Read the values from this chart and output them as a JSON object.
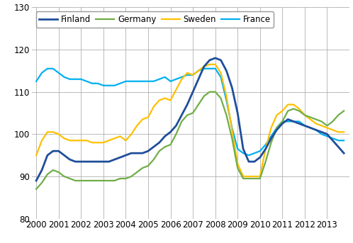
{
  "ylim": [
    80,
    130
  ],
  "yticks": [
    80,
    90,
    100,
    110,
    120,
    130
  ],
  "xtick_labels": [
    "2000",
    "2001",
    "2002",
    "2003",
    "2004",
    "2005",
    "2006",
    "2007",
    "2008",
    "2009",
    "2010",
    "2011",
    "2012",
    "2013"
  ],
  "legend_labels": [
    "Finland",
    "Germany",
    "Sweden",
    "France"
  ],
  "colors": {
    "Finland": "#1f4e9a",
    "Germany": "#70ad47",
    "Sweden": "#ffc000",
    "France": "#00b0f0"
  },
  "linewidths": {
    "Finland": 2.0,
    "Germany": 1.6,
    "Sweden": 1.6,
    "France": 1.6
  },
  "Finland_x": [
    2000.0,
    2000.25,
    2000.5,
    2000.75,
    2001.0,
    2001.25,
    2001.5,
    2001.75,
    2002.0,
    2002.25,
    2002.5,
    2002.75,
    2003.0,
    2003.25,
    2003.5,
    2003.75,
    2004.0,
    2004.25,
    2004.5,
    2004.75,
    2005.0,
    2005.25,
    2005.5,
    2005.75,
    2006.0,
    2006.25,
    2006.5,
    2006.75,
    2007.0,
    2007.25,
    2007.5,
    2007.75,
    2008.0,
    2008.25,
    2008.5,
    2008.75,
    2009.0,
    2009.25,
    2009.5,
    2009.75,
    2010.0,
    2010.25,
    2010.5,
    2010.75,
    2011.0,
    2011.25,
    2011.5,
    2011.75,
    2012.0,
    2012.25,
    2012.5,
    2012.75,
    2013.0,
    2013.25,
    2013.5,
    2013.75
  ],
  "Finland_y": [
    89.0,
    91.5,
    95.0,
    96.0,
    96.0,
    95.0,
    94.0,
    93.5,
    93.5,
    93.5,
    93.5,
    93.5,
    93.5,
    93.5,
    94.0,
    94.5,
    95.0,
    95.5,
    95.5,
    95.5,
    96.0,
    97.0,
    98.0,
    99.5,
    100.5,
    102.0,
    104.5,
    107.0,
    110.0,
    113.0,
    116.0,
    117.5,
    118.0,
    117.5,
    115.0,
    111.0,
    105.0,
    96.5,
    93.5,
    93.5,
    94.5,
    96.5,
    99.0,
    101.0,
    102.5,
    103.5,
    103.0,
    102.5,
    102.0,
    101.5,
    101.0,
    100.5,
    100.0,
    98.5,
    97.0,
    95.5
  ],
  "Germany_x": [
    2000.0,
    2000.25,
    2000.5,
    2000.75,
    2001.0,
    2001.25,
    2001.5,
    2001.75,
    2002.0,
    2002.25,
    2002.5,
    2002.75,
    2003.0,
    2003.25,
    2003.5,
    2003.75,
    2004.0,
    2004.25,
    2004.5,
    2004.75,
    2005.0,
    2005.25,
    2005.5,
    2005.75,
    2006.0,
    2006.25,
    2006.5,
    2006.75,
    2007.0,
    2007.25,
    2007.5,
    2007.75,
    2008.0,
    2008.25,
    2008.5,
    2008.75,
    2009.0,
    2009.25,
    2009.5,
    2009.75,
    2010.0,
    2010.25,
    2010.5,
    2010.75,
    2011.0,
    2011.25,
    2011.5,
    2011.75,
    2012.0,
    2012.25,
    2012.5,
    2012.75,
    2013.0,
    2013.25,
    2013.5,
    2013.75
  ],
  "Germany_y": [
    87.0,
    88.5,
    90.5,
    91.5,
    91.0,
    90.0,
    89.5,
    89.0,
    89.0,
    89.0,
    89.0,
    89.0,
    89.0,
    89.0,
    89.0,
    89.5,
    89.5,
    90.0,
    91.0,
    92.0,
    92.5,
    94.0,
    96.0,
    97.0,
    97.5,
    100.0,
    103.0,
    104.5,
    105.0,
    107.0,
    109.0,
    110.0,
    110.0,
    108.5,
    104.5,
    99.0,
    92.0,
    89.5,
    89.5,
    89.5,
    89.5,
    93.5,
    98.0,
    101.5,
    103.0,
    105.5,
    106.0,
    105.5,
    104.5,
    104.0,
    103.5,
    103.0,
    102.0,
    103.0,
    104.5,
    105.5
  ],
  "Sweden_x": [
    2000.0,
    2000.25,
    2000.5,
    2000.75,
    2001.0,
    2001.25,
    2001.5,
    2001.75,
    2002.0,
    2002.25,
    2002.5,
    2002.75,
    2003.0,
    2003.25,
    2003.5,
    2003.75,
    2004.0,
    2004.25,
    2004.5,
    2004.75,
    2005.0,
    2005.25,
    2005.5,
    2005.75,
    2006.0,
    2006.25,
    2006.5,
    2006.75,
    2007.0,
    2007.25,
    2007.5,
    2007.75,
    2008.0,
    2008.25,
    2008.5,
    2008.75,
    2009.0,
    2009.25,
    2009.5,
    2009.75,
    2010.0,
    2010.25,
    2010.5,
    2010.75,
    2011.0,
    2011.25,
    2011.5,
    2011.75,
    2012.0,
    2012.25,
    2012.5,
    2012.75,
    2013.0,
    2013.25,
    2013.5,
    2013.75
  ],
  "Sweden_y": [
    95.0,
    98.5,
    100.5,
    100.5,
    100.0,
    99.0,
    98.5,
    98.5,
    98.5,
    98.5,
    98.0,
    98.0,
    98.0,
    98.5,
    99.0,
    99.5,
    98.5,
    100.0,
    102.0,
    103.5,
    104.0,
    106.5,
    108.0,
    108.5,
    108.0,
    110.5,
    113.0,
    114.5,
    114.0,
    115.0,
    116.0,
    116.5,
    116.5,
    114.5,
    109.0,
    101.0,
    93.0,
    90.0,
    90.0,
    90.0,
    90.0,
    96.5,
    101.5,
    104.5,
    105.5,
    107.0,
    107.0,
    106.0,
    104.5,
    103.5,
    102.5,
    102.0,
    101.5,
    101.0,
    100.5,
    100.5
  ],
  "France_x": [
    2000.0,
    2000.25,
    2000.5,
    2000.75,
    2001.0,
    2001.25,
    2001.5,
    2001.75,
    2002.0,
    2002.25,
    2002.5,
    2002.75,
    2003.0,
    2003.25,
    2003.5,
    2003.75,
    2004.0,
    2004.25,
    2004.5,
    2004.75,
    2005.0,
    2005.25,
    2005.5,
    2005.75,
    2006.0,
    2006.25,
    2006.5,
    2006.75,
    2007.0,
    2007.25,
    2007.5,
    2007.75,
    2008.0,
    2008.25,
    2008.5,
    2008.75,
    2009.0,
    2009.25,
    2009.5,
    2009.75,
    2010.0,
    2010.25,
    2010.5,
    2010.75,
    2011.0,
    2011.25,
    2011.5,
    2011.75,
    2012.0,
    2012.25,
    2012.5,
    2012.75,
    2013.0,
    2013.25,
    2013.5,
    2013.75
  ],
  "France_y": [
    112.5,
    114.5,
    115.5,
    115.5,
    114.5,
    113.5,
    113.0,
    113.0,
    113.0,
    112.5,
    112.0,
    112.0,
    111.5,
    111.5,
    111.5,
    112.0,
    112.5,
    112.5,
    112.5,
    112.5,
    112.5,
    112.5,
    113.0,
    113.5,
    112.5,
    113.0,
    113.5,
    114.0,
    114.0,
    115.0,
    115.5,
    115.5,
    115.5,
    113.5,
    108.0,
    101.5,
    96.5,
    95.5,
    95.0,
    95.5,
    96.0,
    97.5,
    99.5,
    101.5,
    103.0,
    103.0,
    103.0,
    103.0,
    102.0,
    101.5,
    101.0,
    100.0,
    99.5,
    99.0,
    98.5,
    98.5
  ],
  "background_color": "#ffffff",
  "grid_color": "#b0b0b0"
}
